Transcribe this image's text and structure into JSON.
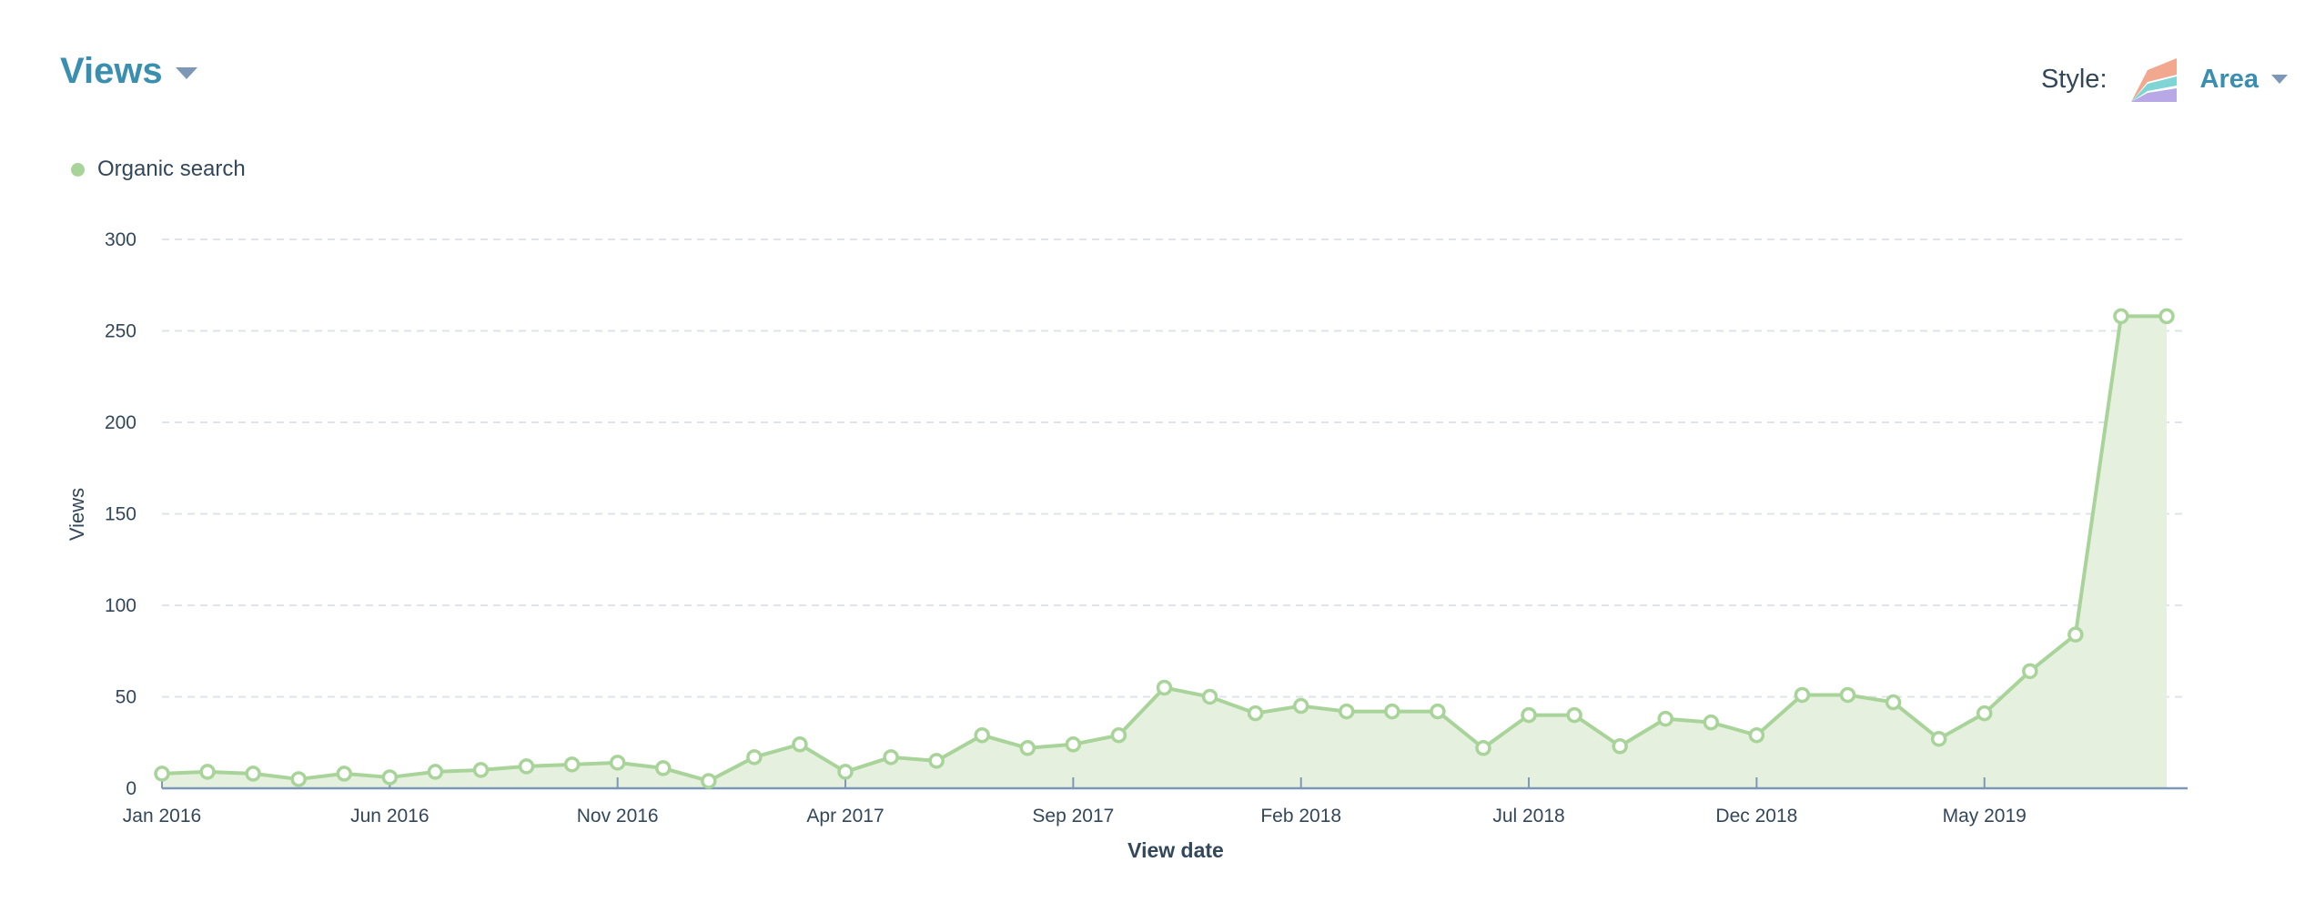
{
  "header": {
    "title": "Views",
    "style_label": "Style:",
    "style_value": "Area",
    "style_icon": "stacked-area-chart-icon"
  },
  "colors": {
    "series": "#a8d49a",
    "fill": "#e5f0de",
    "accent": "#3a8fb0",
    "axis": "#7c98b6",
    "grid": "#dfe3eb",
    "icon": [
      "#f2a88f",
      "#7fd4d4",
      "#b9a8e6"
    ]
  },
  "chart_data": {
    "type": "area",
    "xlabel": "View date",
    "ylabel": "Views",
    "ylim": [
      0,
      300
    ],
    "yticks": [
      0,
      50,
      100,
      150,
      200,
      250,
      300
    ],
    "grid": true,
    "legend_position": "top-left",
    "x_tick_labels": [
      "Jan 2016",
      "Jun 2016",
      "Nov 2016",
      "Apr 2017",
      "Sep 2017",
      "Feb 2018",
      "Jul 2018",
      "Dec 2018",
      "May 2019"
    ],
    "x": [
      "2016-01",
      "2016-02",
      "2016-03",
      "2016-04",
      "2016-05",
      "2016-06",
      "2016-07",
      "2016-08",
      "2016-09",
      "2016-10",
      "2016-11",
      "2016-12",
      "2017-01",
      "2017-02",
      "2017-03",
      "2017-04",
      "2017-05",
      "2017-06",
      "2017-07",
      "2017-08",
      "2017-09",
      "2017-10",
      "2017-11",
      "2017-12",
      "2018-01",
      "2018-02",
      "2018-03",
      "2018-04",
      "2018-05",
      "2018-06",
      "2018-07",
      "2018-08",
      "2018-09",
      "2018-10",
      "2018-11",
      "2018-12",
      "2019-01",
      "2019-02",
      "2019-03",
      "2019-04",
      "2019-05",
      "2019-06",
      "2019-07",
      "2019-08",
      "2019-09"
    ],
    "series": [
      {
        "name": "Organic search",
        "values": [
          8,
          9,
          8,
          5,
          8,
          6,
          9,
          10,
          12,
          13,
          14,
          11,
          4,
          17,
          24,
          9,
          17,
          15,
          29,
          22,
          24,
          29,
          55,
          50,
          41,
          45,
          42,
          42,
          42,
          22,
          40,
          40,
          23,
          38,
          36,
          29,
          51,
          51,
          47,
          27,
          41,
          64,
          84,
          258,
          258
        ]
      }
    ]
  }
}
